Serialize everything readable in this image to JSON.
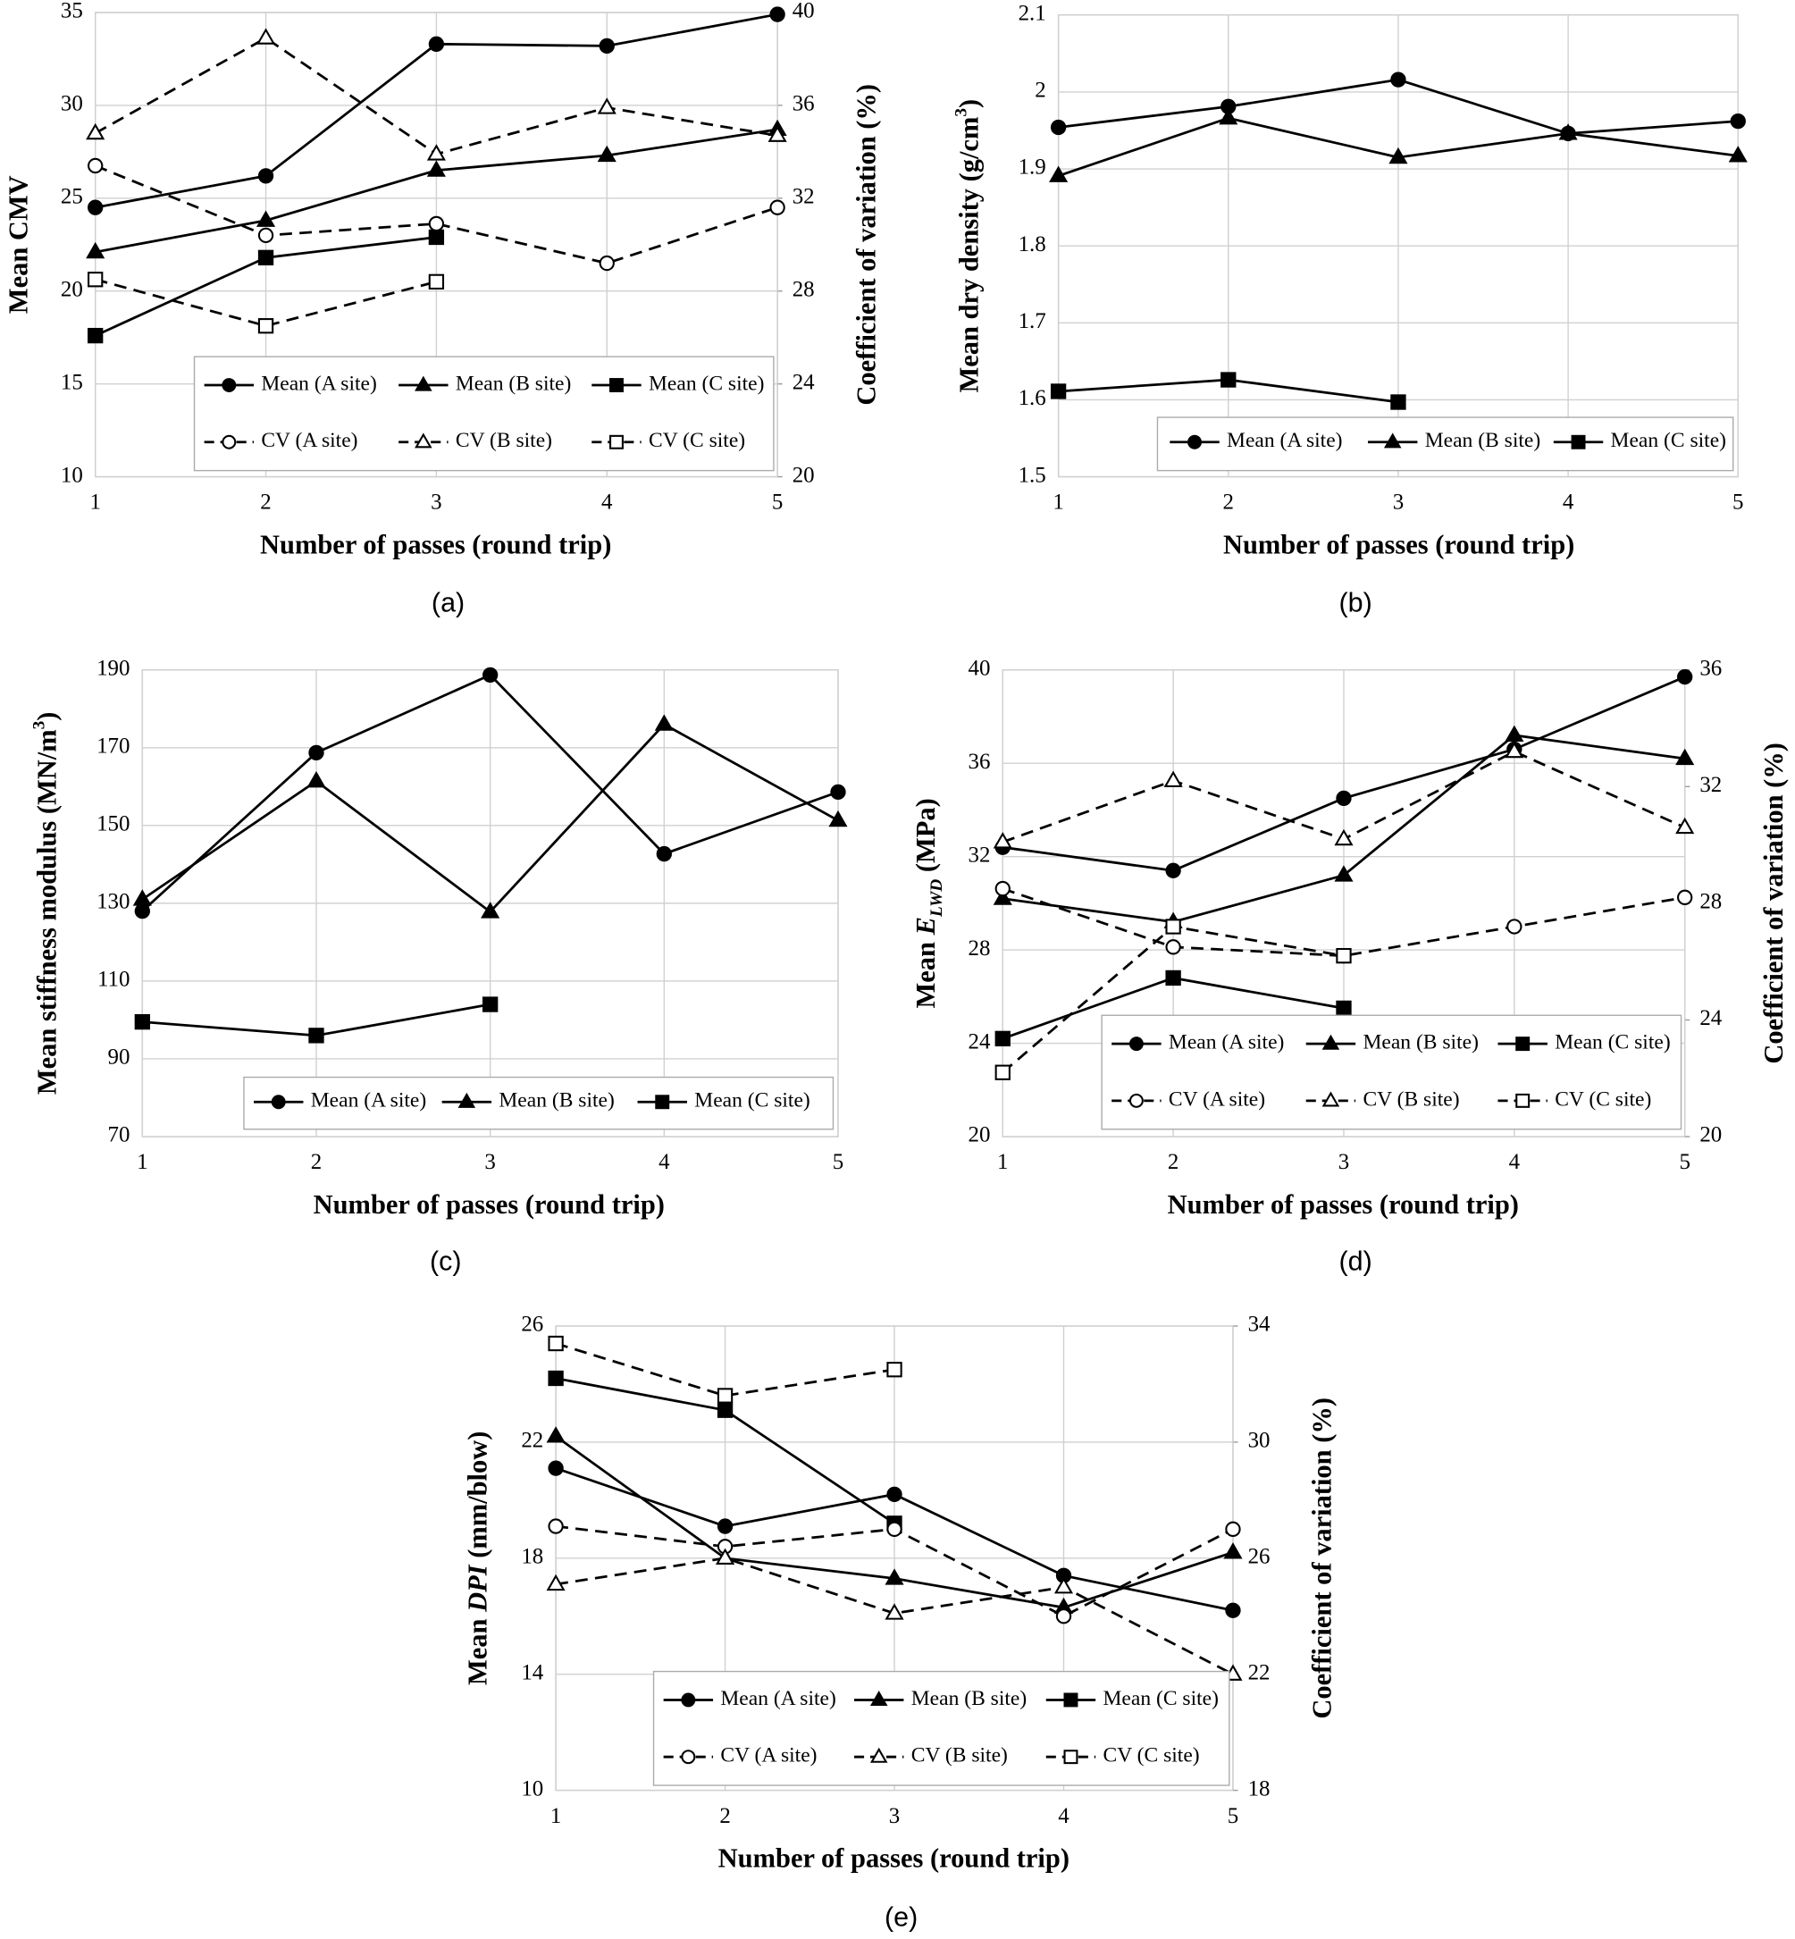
{
  "chart_data": [
    {
      "type": "line",
      "caption": "(a)",
      "xlabel": "Number of passes (round trip)",
      "ylabel": "Mean CMV",
      "y2label": "Coefficient of variation (%)",
      "x": [
        1,
        2,
        3,
        4,
        5
      ],
      "xlim": [
        1,
        5
      ],
      "xticks": [
        1,
        2,
        3,
        4,
        5
      ],
      "ylim": [
        10,
        35
      ],
      "yticks": [
        10,
        15,
        20,
        25,
        30,
        35
      ],
      "y2lim": [
        20,
        40
      ],
      "y2ticks": [
        20,
        24,
        28,
        32,
        36,
        40
      ],
      "grid": true,
      "series": [
        {
          "name": "Mean (A site)",
          "color": "#000000",
          "marker": "circle",
          "fill": "filled",
          "linestyle": "solid",
          "values": [
            24.5,
            26.2,
            33.3,
            33.2,
            34.9
          ]
        },
        {
          "name": "Mean (B site)",
          "color": "#000000",
          "marker": "triangle",
          "fill": "filled",
          "linestyle": "solid",
          "values": [
            22.1,
            23.8,
            26.5,
            27.3,
            28.7
          ]
        },
        {
          "name": "Mean (C site)",
          "color": "#000000",
          "marker": "square",
          "fill": "filled",
          "linestyle": "solid",
          "values": [
            17.6,
            21.8,
            22.9,
            null,
            null
          ]
        },
        {
          "name": "CV (A site)",
          "color": "#000000",
          "marker": "circle",
          "fill": "open",
          "linestyle": "dashed",
          "axis": "y2",
          "values": [
            33.4,
            30.4,
            30.9,
            29.2,
            31.6
          ]
        },
        {
          "name": "CV (B site)",
          "color": "#000000",
          "marker": "triangle",
          "fill": "open",
          "linestyle": "dashed",
          "axis": "y2",
          "values": [
            34.8,
            38.9,
            33.9,
            35.9,
            34.7
          ]
        },
        {
          "name": "CV (C site)",
          "color": "#000000",
          "marker": "square",
          "fill": "open",
          "linestyle": "dashed",
          "axis": "y2",
          "values": [
            28.5,
            26.5,
            28.4,
            null,
            null
          ]
        }
      ]
    },
    {
      "type": "line",
      "caption": "(b)",
      "xlabel": "Number of passes (round trip)",
      "ylabel": [
        {
          "text": "Mean dry density (g/cm",
          "style": "normal"
        },
        {
          "text": "3",
          "style": "sup"
        },
        {
          "text": ")",
          "style": "normal"
        }
      ],
      "x": [
        1,
        2,
        3,
        4,
        5
      ],
      "xlim": [
        1,
        5
      ],
      "xticks": [
        1,
        2,
        3,
        4,
        5
      ],
      "ylim": [
        1.5,
        2.1
      ],
      "yticks": [
        1.5,
        1.6,
        1.7,
        1.8,
        1.9,
        2,
        2.1
      ],
      "grid": true,
      "series": [
        {
          "name": "Mean (A site)",
          "color": "#000000",
          "marker": "circle",
          "fill": "filled",
          "linestyle": "solid",
          "values": [
            1.954,
            1.981,
            2.016,
            1.946,
            1.962
          ]
        },
        {
          "name": "Mean (B site)",
          "color": "#000000",
          "marker": "triangle",
          "fill": "filled",
          "linestyle": "solid",
          "values": [
            1.891,
            1.966,
            1.915,
            1.946,
            1.917
          ]
        },
        {
          "name": "Mean (C site)",
          "color": "#000000",
          "marker": "square",
          "fill": "filled",
          "linestyle": "solid",
          "values": [
            1.611,
            1.626,
            1.597,
            null,
            null
          ]
        }
      ]
    },
    {
      "type": "line",
      "caption": "(c)",
      "xlabel": "Number of passes (round trip)",
      "ylabel": [
        {
          "text": "Mean stiffness modulus (MN/m",
          "style": "normal"
        },
        {
          "text": "3",
          "style": "sup"
        },
        {
          "text": ")",
          "style": "normal"
        }
      ],
      "x": [
        1,
        2,
        3,
        4,
        5
      ],
      "xlim": [
        1,
        5
      ],
      "xticks": [
        1,
        2,
        3,
        4,
        5
      ],
      "ylim": [
        70,
        190
      ],
      "yticks": [
        70,
        90,
        110,
        130,
        150,
        170,
        190
      ],
      "grid": true,
      "series": [
        {
          "name": "Mean (A site)",
          "color": "#000000",
          "marker": "circle",
          "fill": "filled",
          "linestyle": "solid",
          "values": [
            128,
            168.7,
            188.7,
            142.7,
            158.6
          ]
        },
        {
          "name": "Mean (B site)",
          "color": "#000000",
          "marker": "triangle",
          "fill": "filled",
          "linestyle": "solid",
          "values": [
            131,
            161.4,
            127.8,
            176,
            151.3
          ]
        },
        {
          "name": "Mean (C site)",
          "color": "#000000",
          "marker": "square",
          "fill": "filled",
          "linestyle": "solid",
          "values": [
            99.5,
            96,
            104,
            null,
            null
          ]
        }
      ]
    },
    {
      "type": "line",
      "caption": "(d)",
      "xlabel": "Number of passes (round trip)",
      "ylabel": [
        {
          "text": "Mean ",
          "style": "normal"
        },
        {
          "text": "E",
          "style": "italic"
        },
        {
          "text": "LWD",
          "style": "sub"
        },
        {
          "text": " (MPa)",
          "style": "normal"
        }
      ],
      "y2label": "Coefficient of variation (%)",
      "x": [
        1,
        2,
        3,
        4,
        5
      ],
      "xlim": [
        1,
        5
      ],
      "xticks": [
        1,
        2,
        3,
        4,
        5
      ],
      "ylim": [
        20,
        40
      ],
      "yticks": [
        20,
        24,
        28,
        32,
        36,
        40
      ],
      "y2lim": [
        20,
        36
      ],
      "y2ticks": [
        20,
        24,
        28,
        32,
        36
      ],
      "grid": true,
      "series": [
        {
          "name": "Mean (A site)",
          "color": "#000000",
          "marker": "circle",
          "fill": "filled",
          "linestyle": "solid",
          "values": [
            32.4,
            31.4,
            34.5,
            36.6,
            39.7
          ]
        },
        {
          "name": "Mean (B site)",
          "color": "#000000",
          "marker": "triangle",
          "fill": "filled",
          "linestyle": "solid",
          "values": [
            30.2,
            29.2,
            31.2,
            37.2,
            36.2
          ]
        },
        {
          "name": "Mean (C site)",
          "color": "#000000",
          "marker": "square",
          "fill": "filled",
          "linestyle": "solid",
          "values": [
            24.2,
            26.8,
            25.5,
            null,
            null
          ]
        },
        {
          "name": "CV (A site)",
          "color": "#000000",
          "marker": "circle",
          "fill": "open",
          "linestyle": "dashed",
          "axis": "y2",
          "values": [
            28.5,
            26.5,
            26.2,
            27.2,
            28.2
          ]
        },
        {
          "name": "CV (B site)",
          "color": "#000000",
          "marker": "triangle",
          "fill": "open",
          "linestyle": "dashed",
          "axis": "y2",
          "values": [
            30.1,
            32.2,
            30.2,
            33.2,
            30.6
          ]
        },
        {
          "name": "CV (C site)",
          "color": "#000000",
          "marker": "square",
          "fill": "open",
          "linestyle": "dashed",
          "axis": "y2",
          "values": [
            22.2,
            27.2,
            26.2,
            null,
            null
          ]
        }
      ]
    },
    {
      "type": "line",
      "caption": "(e)",
      "xlabel": "Number of passes (round trip)",
      "ylabel": [
        {
          "text": "Mean ",
          "style": "normal"
        },
        {
          "text": "DPI",
          "style": "italic"
        },
        {
          "text": " (mm/blow)",
          "style": "normal"
        }
      ],
      "y2label": "Coefficient of variation (%)",
      "x": [
        1,
        2,
        3,
        4,
        5
      ],
      "xlim": [
        1,
        5
      ],
      "xticks": [
        1,
        2,
        3,
        4,
        5
      ],
      "ylim": [
        10,
        26
      ],
      "yticks": [
        10,
        14,
        18,
        22,
        26
      ],
      "y2lim": [
        18,
        34
      ],
      "y2ticks": [
        18,
        22,
        26,
        30,
        34
      ],
      "grid": true,
      "series": [
        {
          "name": "Mean (A site)",
          "color": "#000000",
          "marker": "circle",
          "fill": "filled",
          "linestyle": "solid",
          "values": [
            21.1,
            19.1,
            20.2,
            17.4,
            16.2
          ]
        },
        {
          "name": "Mean (B site)",
          "color": "#000000",
          "marker": "triangle",
          "fill": "filled",
          "linestyle": "solid",
          "values": [
            22.2,
            18.0,
            17.3,
            16.3,
            18.2
          ]
        },
        {
          "name": "Mean (C site)",
          "color": "#000000",
          "marker": "square",
          "fill": "filled",
          "linestyle": "solid",
          "values": [
            24.2,
            23.1,
            19.2,
            null,
            null
          ]
        },
        {
          "name": "CV (A site)",
          "color": "#000000",
          "marker": "circle",
          "fill": "open",
          "linestyle": "dashed",
          "axis": "y2",
          "values": [
            27.1,
            26.4,
            27.0,
            24.0,
            27.0
          ]
        },
        {
          "name": "CV (B site)",
          "color": "#000000",
          "marker": "triangle",
          "fill": "open",
          "linestyle": "dashed",
          "axis": "y2",
          "values": [
            25.1,
            26.0,
            24.1,
            25.0,
            22.0
          ]
        },
        {
          "name": "CV (C site)",
          "color": "#000000",
          "marker": "square",
          "fill": "open",
          "linestyle": "dashed",
          "axis": "y2",
          "values": [
            33.4,
            31.6,
            32.5,
            null,
            null
          ]
        }
      ]
    }
  ]
}
